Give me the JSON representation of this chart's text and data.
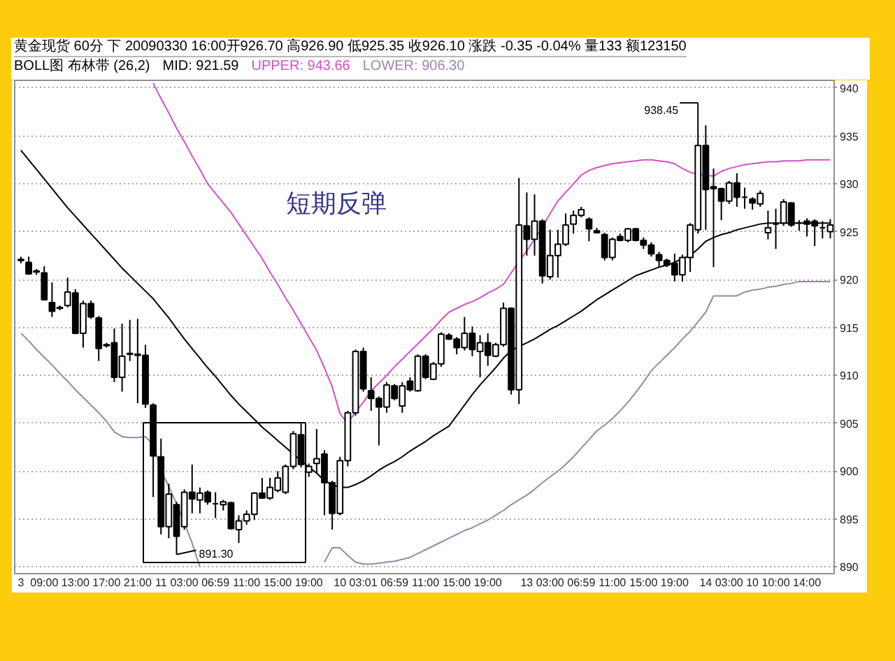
{
  "chart_data": {
    "type": "candlestick",
    "title": "黄金现货 60分 下 20090330 16:00开926.70 高926.90 低925.35 收926.10 涨跌 -0.35 -0.04% 量133 额123150",
    "subtitle": "BOLL图 布林带 (26,2)",
    "categories": [
      "3",
      null,
      null,
      "09:00",
      null,
      null,
      null,
      "13:00",
      null,
      null,
      null,
      "17:00",
      null,
      null,
      null,
      "21:00",
      null,
      null,
      "11",
      null,
      null,
      "03:00",
      null,
      null,
      null,
      "06:59",
      null,
      null,
      null,
      "11:00",
      null,
      null,
      null,
      "15:00",
      null,
      null,
      null,
      "19:00",
      null,
      null,
      null,
      "10",
      null,
      null,
      "03:01",
      null,
      null,
      null,
      "06:59",
      null,
      null,
      null,
      "11:00",
      null,
      null,
      null,
      "15:00",
      null,
      null,
      null,
      "19:00",
      null,
      null,
      null,
      null,
      "13",
      null,
      null,
      "03:00",
      null,
      null,
      null,
      "06:59",
      null,
      null,
      null,
      "11:00",
      null,
      null,
      null,
      "15:00",
      null,
      null,
      null,
      "19:00",
      null,
      null,
      null,
      "14",
      null,
      null,
      "03:00",
      null,
      null,
      "10",
      null,
      null,
      "10:00",
      null,
      null,
      null,
      "14:00",
      null,
      null,
      null
    ],
    "ohlc": [
      [
        922.0,
        922.4,
        921.7,
        922.1
      ],
      [
        921.8,
        922.4,
        920.5,
        920.6
      ],
      [
        920.9,
        921.1,
        920.5,
        920.8
      ],
      [
        920.7,
        921.4,
        917.8,
        917.9
      ],
      [
        917.6,
        919.7,
        916.1,
        916.7
      ],
      [
        917.0,
        917.3,
        916.8,
        917.1
      ],
      [
        917.3,
        920.2,
        917.1,
        918.7
      ],
      [
        918.6,
        919.0,
        914.3,
        914.4
      ],
      [
        914.4,
        917.8,
        912.9,
        917.5
      ],
      [
        917.5,
        917.8,
        915.9,
        916.1
      ],
      [
        916.0,
        916.2,
        911.5,
        912.8
      ],
      [
        913.1,
        913.4,
        912.9,
        913.2
      ],
      [
        913.4,
        914.9,
        909.3,
        909.8
      ],
      [
        909.8,
        915.4,
        908.3,
        912.0
      ],
      [
        912.3,
        915.8,
        911.5,
        912.2
      ],
      [
        912.2,
        915.9,
        907.1,
        912.1
      ],
      [
        912.1,
        913.2,
        906.6,
        907.0
      ],
      [
        906.9,
        907.1,
        897.3,
        901.6
      ],
      [
        901.5,
        903.4,
        893.4,
        894.2
      ],
      [
        894.2,
        898.7,
        893.0,
        897.6
      ],
      [
        896.5,
        896.8,
        891.3,
        893.2
      ],
      [
        894.2,
        898.1,
        893.9,
        897.8
      ],
      [
        897.8,
        900.7,
        895.6,
        897.1
      ],
      [
        897.0,
        898.3,
        895.6,
        897.7
      ],
      [
        897.8,
        898.0,
        896.5,
        896.8
      ],
      [
        896.6,
        897.8,
        895.1,
        896.6
      ],
      [
        896.5,
        897.0,
        895.9,
        896.8
      ],
      [
        896.7,
        896.8,
        893.9,
        894.0
      ],
      [
        893.9,
        895.4,
        892.5,
        894.8
      ],
      [
        894.8,
        895.9,
        894.4,
        895.5
      ],
      [
        895.5,
        897.8,
        894.9,
        897.7
      ],
      [
        897.7,
        899.3,
        897.1,
        897.2
      ],
      [
        897.2,
        899.3,
        897.0,
        898.3
      ],
      [
        898.0,
        900.0,
        897.8,
        899.3
      ],
      [
        897.8,
        900.7,
        897.6,
        900.5
      ],
      [
        900.5,
        904.2,
        900.2,
        903.9
      ],
      [
        903.8,
        905.1,
        900.4,
        900.7
      ],
      [
        899.9,
        900.8,
        899.4,
        900.5
      ],
      [
        900.8,
        904.4,
        899.8,
        901.3
      ],
      [
        901.8,
        902.2,
        895.4,
        898.8
      ],
      [
        898.8,
        899.0,
        893.9,
        895.6
      ],
      [
        895.6,
        901.5,
        895.4,
        901.1
      ],
      [
        901.1,
        906.3,
        900.5,
        906.1
      ],
      [
        906.1,
        912.7,
        905.8,
        912.5
      ],
      [
        912.5,
        912.9,
        908.3,
        908.6
      ],
      [
        908.4,
        909.8,
        906.3,
        907.6
      ],
      [
        907.6,
        907.8,
        902.7,
        906.7
      ],
      [
        906.7,
        909.3,
        906.1,
        909.0
      ],
      [
        908.9,
        909.1,
        907.4,
        907.6
      ],
      [
        906.8,
        909.3,
        906.1,
        908.9
      ],
      [
        909.4,
        909.8,
        908.3,
        908.5
      ],
      [
        908.4,
        912.2,
        908.3,
        912.0
      ],
      [
        912.0,
        912.2,
        909.6,
        909.8
      ],
      [
        909.6,
        911.4,
        909.5,
        911.2
      ],
      [
        911.2,
        914.5,
        910.9,
        914.3
      ],
      [
        914.2,
        914.4,
        913.7,
        913.8
      ],
      [
        913.8,
        914.0,
        912.2,
        912.9
      ],
      [
        912.9,
        916.1,
        912.6,
        914.4
      ],
      [
        914.4,
        915.1,
        912.0,
        912.7
      ],
      [
        912.5,
        914.2,
        909.8,
        913.4
      ],
      [
        913.4,
        914.4,
        911.0,
        912.1
      ],
      [
        912.0,
        913.4,
        911.9,
        913.2
      ],
      [
        913.2,
        917.6,
        913.0,
        917.0
      ],
      [
        917.0,
        917.1,
        908.0,
        908.5
      ],
      [
        908.5,
        930.6,
        907.0,
        925.7
      ],
      [
        925.6,
        929.1,
        922.5,
        924.2
      ],
      [
        924.2,
        928.9,
        922.5,
        926.1
      ],
      [
        926.1,
        926.3,
        919.6,
        920.4
      ],
      [
        920.3,
        925.2,
        920.0,
        922.5
      ],
      [
        922.5,
        925.2,
        920.2,
        923.7
      ],
      [
        923.7,
        926.9,
        923.5,
        925.7
      ],
      [
        925.8,
        927.2,
        924.8,
        926.7
      ],
      [
        926.7,
        927.6,
        926.5,
        927.3
      ],
      [
        926.3,
        926.5,
        924.0,
        925.3
      ],
      [
        925.1,
        925.4,
        924.8,
        924.9
      ],
      [
        924.7,
        924.9,
        922.0,
        922.3
      ],
      [
        922.3,
        924.4,
        922.0,
        924.2
      ],
      [
        924.5,
        924.8,
        924.0,
        924.1
      ],
      [
        924.1,
        925.4,
        923.9,
        925.3
      ],
      [
        925.3,
        925.4,
        924.0,
        924.1
      ],
      [
        924.1,
        924.4,
        923.2,
        923.6
      ],
      [
        923.6,
        923.9,
        922.4,
        922.7
      ],
      [
        922.6,
        922.9,
        921.3,
        922.0
      ],
      [
        922.0,
        922.2,
        921.3,
        921.5
      ],
      [
        921.7,
        922.7,
        919.8,
        920.5
      ],
      [
        920.5,
        922.6,
        919.8,
        922.3
      ],
      [
        922.3,
        925.9,
        920.8,
        925.7
      ],
      [
        925.2,
        938.45,
        924.8,
        934.0
      ],
      [
        934.0,
        936.1,
        925.2,
        929.4
      ],
      [
        929.7,
        931.6,
        921.3,
        929.5
      ],
      [
        929.5,
        929.6,
        926.2,
        928.2
      ],
      [
        928.2,
        930.3,
        927.9,
        930.1
      ],
      [
        930.1,
        931.1,
        927.6,
        928.6
      ],
      [
        928.6,
        929.6,
        927.4,
        928.6
      ],
      [
        928.4,
        928.6,
        927.3,
        928.0
      ],
      [
        927.9,
        929.3,
        927.6,
        929.0
      ],
      [
        924.9,
        927.2,
        924.2,
        925.4
      ],
      [
        925.8,
        927.4,
        923.2,
        925.8
      ],
      [
        925.9,
        928.4,
        925.6,
        928.1
      ],
      [
        928.0,
        928.1,
        925.5,
        925.7
      ],
      [
        925.9,
        926.2,
        925.1,
        925.9
      ],
      [
        926.1,
        926.4,
        924.5,
        925.8
      ],
      [
        926.1,
        926.3,
        923.5,
        925.6
      ],
      [
        925.4,
        926.1,
        924.3,
        925.4
      ],
      [
        925.0,
        926.3,
        924.3,
        925.7
      ]
    ],
    "series": [
      {
        "name": "MID: 921.59",
        "type": "line",
        "color": "#000000",
        "values": [
          933.5,
          932.5,
          931.5,
          930.5,
          929.5,
          928.5,
          927.5,
          926.6,
          925.7,
          924.8,
          923.9,
          923.0,
          922.1,
          921.2,
          920.4,
          919.6,
          918.8,
          918.0,
          917.0,
          916.0,
          914.9,
          913.8,
          912.8,
          911.8,
          910.8,
          909.9,
          908.9,
          907.9,
          907.0,
          906.2,
          905.4,
          904.6,
          903.9,
          903.2,
          902.5,
          901.8,
          901.1,
          900.4,
          899.8,
          899.0,
          898.6,
          898.3,
          898.3,
          898.6,
          899.0,
          899.5,
          900.1,
          900.6,
          901.0,
          901.5,
          902.1,
          902.6,
          903.1,
          903.7,
          904.2,
          904.7,
          905.8,
          906.9,
          908.0,
          909.0,
          909.9,
          910.8,
          911.8,
          912.6,
          913.0,
          913.4,
          913.8,
          914.3,
          914.8,
          915.2,
          915.7,
          916.2,
          916.7,
          917.3,
          917.9,
          918.4,
          918.9,
          919.4,
          919.9,
          920.4,
          920.7,
          921.0,
          921.3,
          921.5,
          921.8,
          922.2,
          922.5,
          923.2,
          924.0,
          924.4,
          924.7,
          924.9,
          925.2,
          925.4,
          925.6,
          925.8,
          925.9,
          925.9,
          925.9,
          925.9,
          925.9,
          925.9,
          925.9,
          925.9,
          925.9
        ]
      },
      {
        "name": "UPPER: 943.66",
        "type": "line",
        "color": "#d450c8",
        "values": [
          null,
          null,
          null,
          null,
          null,
          null,
          null,
          null,
          null,
          null,
          null,
          null,
          null,
          null,
          null,
          null,
          null,
          940.5,
          938.9,
          937.4,
          935.8,
          934.4,
          932.9,
          931.5,
          930.0,
          929.0,
          928.0,
          927.0,
          925.8,
          924.6,
          923.4,
          922.2,
          920.8,
          919.5,
          918.1,
          916.8,
          915.4,
          914.0,
          912.6,
          910.8,
          908.8,
          906.0,
          905.0,
          906.2,
          907.2,
          908.4,
          909.2,
          910.0,
          910.9,
          911.7,
          912.5,
          913.3,
          914.1,
          914.9,
          915.8,
          916.6,
          917.0,
          917.4,
          917.7,
          918.1,
          918.6,
          919.0,
          919.5,
          920.7,
          921.9,
          923.0,
          924.2,
          925.5,
          926.9,
          928.2,
          929.1,
          930.0,
          930.9,
          931.4,
          931.7,
          931.9,
          932.1,
          932.2,
          932.3,
          932.4,
          932.5,
          932.5,
          932.4,
          932.3,
          932.1,
          931.6,
          931.2,
          931.0,
          930.9,
          930.8,
          931.3,
          931.6,
          931.8,
          932.0,
          932.1,
          932.2,
          932.3,
          932.3,
          932.4,
          932.4,
          932.4,
          932.5,
          932.5,
          932.5,
          932.5
        ]
      },
      {
        "name": "LOWER: 906.30",
        "type": "line",
        "color": "#9c86aa",
        "values": [
          914.4,
          913.6,
          912.7,
          911.9,
          911.1,
          910.2,
          909.4,
          908.5,
          907.7,
          906.9,
          906.1,
          905.2,
          904.1,
          903.6,
          903.5,
          903.5,
          903.6,
          902.8,
          900.1,
          898.4,
          896.6,
          894.6,
          892.5,
          890.0,
          null,
          null,
          null,
          null,
          null,
          null,
          null,
          null,
          null,
          null,
          null,
          null,
          null,
          null,
          null,
          890.5,
          892.0,
          892.0,
          891.2,
          890.5,
          890.3,
          890.3,
          890.4,
          890.5,
          890.6,
          890.8,
          891.0,
          891.4,
          891.8,
          892.2,
          892.6,
          893.0,
          893.4,
          893.8,
          894.1,
          894.5,
          894.9,
          895.4,
          895.9,
          896.5,
          897.0,
          897.5,
          898.1,
          898.8,
          899.4,
          900.0,
          900.7,
          901.5,
          902.4,
          903.3,
          904.2,
          904.8,
          905.5,
          906.3,
          907.2,
          908.2,
          909.3,
          910.5,
          911.3,
          912.1,
          912.9,
          913.8,
          914.6,
          915.6,
          916.6,
          918.3,
          918.3,
          918.3,
          918.3,
          918.7,
          918.9,
          919.0,
          919.2,
          919.3,
          919.5,
          919.6,
          919.8,
          919.8,
          919.8,
          919.8,
          919.8
        ]
      }
    ],
    "ylim": [
      889.3,
      940.8
    ],
    "yticks": [
      890,
      895,
      900,
      905,
      910,
      915,
      920,
      925,
      930,
      935,
      940
    ],
    "grid": "y",
    "annotations": [
      "短期反弹",
      "891.30",
      "938.45"
    ]
  }
}
